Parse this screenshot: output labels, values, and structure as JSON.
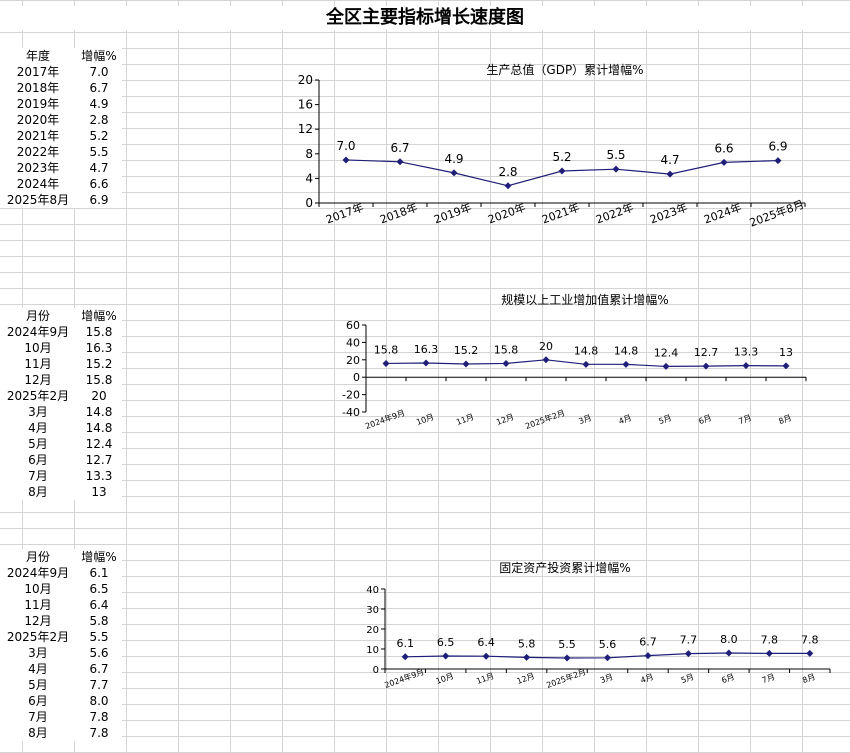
{
  "page_title": "全区主要指标增长速度图",
  "tables": [
    {
      "header": [
        "年度",
        "增幅%"
      ],
      "rows": [
        [
          "2017年",
          "7.0"
        ],
        [
          "2018年",
          "6.7"
        ],
        [
          "2019年",
          "4.9"
        ],
        [
          "2020年",
          "2.8"
        ],
        [
          "2021年",
          "5.2"
        ],
        [
          "2022年",
          "5.5"
        ],
        [
          "2023年",
          "4.7"
        ],
        [
          "2024年",
          "6.6"
        ],
        [
          "2025年8月",
          "6.9"
        ]
      ]
    },
    {
      "header": [
        "月份",
        "增幅%"
      ],
      "rows": [
        [
          "2024年9月",
          "15.8"
        ],
        [
          "10月",
          "16.3"
        ],
        [
          "11月",
          "15.2"
        ],
        [
          "12月",
          "15.8"
        ],
        [
          "2025年2月",
          "20"
        ],
        [
          "3月",
          "14.8"
        ],
        [
          "4月",
          "14.8"
        ],
        [
          "5月",
          "12.4"
        ],
        [
          "6月",
          "12.7"
        ],
        [
          "7月",
          "13.3"
        ],
        [
          "8月",
          "13"
        ]
      ]
    },
    {
      "header": [
        "月份",
        "增幅%"
      ],
      "rows": [
        [
          "2024年9月",
          "6.1"
        ],
        [
          "10月",
          "6.5"
        ],
        [
          "11月",
          "6.4"
        ],
        [
          "12月",
          "5.8"
        ],
        [
          "2025年2月",
          "5.5"
        ],
        [
          "3月",
          "5.6"
        ],
        [
          "4月",
          "6.7"
        ],
        [
          "5月",
          "7.7"
        ],
        [
          "6月",
          "8.0"
        ],
        [
          "7月",
          "7.8"
        ],
        [
          "8月",
          "7.8"
        ]
      ]
    }
  ],
  "chart_data": [
    {
      "type": "line",
      "title": "生产总值（GDP）累计增幅%",
      "categories": [
        "2017年",
        "2018年",
        "2019年",
        "2020年",
        "2021年",
        "2022年",
        "2023年",
        "2024年",
        "2025年8月"
      ],
      "values": [
        7.0,
        6.7,
        4.9,
        2.8,
        5.2,
        5.5,
        4.7,
        6.6,
        6.9
      ],
      "value_labels": [
        "7.0",
        "6.7",
        "4.9",
        "2.8",
        "5.2",
        "5.5",
        "4.7",
        "6.6",
        "6.9"
      ],
      "ylim": [
        0,
        20
      ],
      "yticks": [
        0,
        4,
        8,
        12,
        16,
        20
      ],
      "grid": false,
      "legend": "none",
      "line_color": "#1f1f7a"
    },
    {
      "type": "line",
      "title": "规模以上工业增加值累计增幅%",
      "categories": [
        "2024年9月",
        "10月",
        "11月",
        "12月",
        "2025年2月",
        "3月",
        "4月",
        "5月",
        "6月",
        "7月",
        "8月"
      ],
      "values": [
        15.8,
        16.3,
        15.2,
        15.8,
        20,
        14.8,
        14.8,
        12.4,
        12.7,
        13.3,
        13
      ],
      "value_labels": [
        "15.8",
        "16.3",
        "15.2",
        "15.8",
        "20",
        "14.8",
        "14.8",
        "12.4",
        "12.7",
        "13.3",
        "13"
      ],
      "ylim": [
        -40,
        60
      ],
      "yticks": [
        -40,
        -20,
        0,
        20,
        40,
        60
      ],
      "grid": false,
      "legend": "none",
      "line_color": "#1f1f7a"
    },
    {
      "type": "line",
      "title": "固定资产投资累计增幅%",
      "categories": [
        "2024年9月",
        "10月",
        "11月",
        "12月",
        "2025年2月",
        "3月",
        "4月",
        "5月",
        "6月",
        "7月",
        "8月"
      ],
      "values": [
        6.1,
        6.5,
        6.4,
        5.8,
        5.5,
        5.6,
        6.7,
        7.7,
        8.0,
        7.8,
        7.8
      ],
      "value_labels": [
        "6.1",
        "6.5",
        "6.4",
        "5.8",
        "5.5",
        "5.6",
        "6.7",
        "7.7",
        "8.0",
        "7.8",
        "7.8"
      ],
      "ylim": [
        0,
        40
      ],
      "yticks": [
        0,
        10,
        20,
        30,
        40
      ],
      "grid": false,
      "legend": "none",
      "line_color": "#1f1f7a"
    }
  ]
}
